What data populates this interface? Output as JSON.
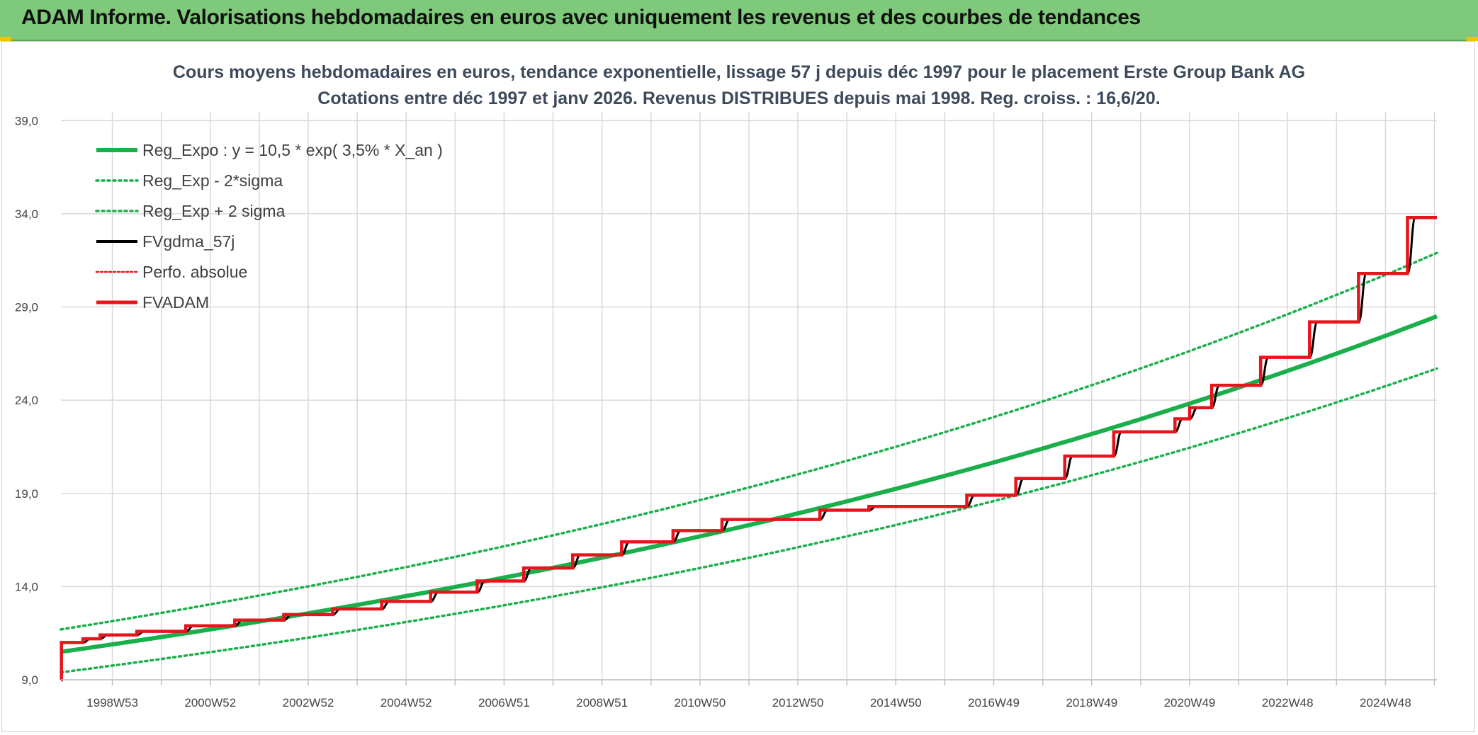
{
  "banner": {
    "title": "ADAM Informe. Valorisations hebdomadaires en euros avec uniquement les revenus et des courbes de tendances"
  },
  "colors": {
    "banner_bg": "#7fc97a",
    "trend_green": "#1aaf4b",
    "red": "#e8141c",
    "black": "#000000",
    "grid": "#d9d9d9"
  },
  "chart_data": {
    "type": "line",
    "title": "Cours moyens hebdomadaires en euros, tendance exponentielle, lissage 57 j depuis déc 1997 pour le placement Erste Group Bank AG",
    "subtitle": "Cotations entre déc 1997 et janv 2026. Revenus DISTRIBUES depuis mai 1998. Reg. croiss. : 16,6/20.",
    "xlabel": "",
    "ylabel": "",
    "x_range": [
      1997.95,
      2026.05
    ],
    "ylim": [
      9,
      40
    ],
    "y_ticks": [
      "9,0",
      "14,0",
      "19,0",
      "24,0",
      "29,0",
      "34,0",
      "39,0"
    ],
    "y_tick_values": [
      9,
      14,
      19,
      24,
      29,
      34,
      39
    ],
    "x_tick_labels": [
      "1998W53",
      "2000W52",
      "2002W52",
      "2004W52",
      "2006W51",
      "2008W51",
      "2010W50",
      "2012W50",
      "2014W50",
      "2016W49",
      "2018W49",
      "2020W49",
      "2022W48",
      "2024W48"
    ],
    "x_tick_values": [
      1999.0,
      2001.0,
      2003.0,
      2005.0,
      2007.0,
      2009.0,
      2011.0,
      2013.0,
      2015.0,
      2017.0,
      2019.0,
      2021.0,
      2023.0,
      2025.0
    ],
    "grid": true,
    "legend_position": "top-left",
    "legend": [
      "Reg_Expo : y = 10,5 * exp( 3,5% *  X_an )",
      "Reg_Exp - 2*sigma",
      "Reg_Exp + 2 sigma",
      "FVgdma_57j",
      "Perfo. absolue",
      "FVADAM"
    ],
    "series": [
      {
        "name": "Reg_Expo : y = 10,5 * exp( 3,5% *  X_an )",
        "style": "solid",
        "color": "#1aaf4b",
        "x": [
          1997.95,
          2026.05
        ],
        "y_start": 10.5,
        "y_end": 28.5
      },
      {
        "name": "Reg_Exp - 2*sigma",
        "style": "dotted",
        "color": "#1aaf4b",
        "x": [
          1997.95,
          2026.05
        ],
        "y_start": 9.4,
        "y_end": 25.7
      },
      {
        "name": "Reg_Exp + 2 sigma",
        "style": "dotted",
        "color": "#1aaf4b",
        "x": [
          1997.95,
          2026.05
        ],
        "y_start": 11.7,
        "y_end": 31.9
      },
      {
        "name": "FVgdma_57j",
        "style": "solid",
        "color": "#000000",
        "note": "smoothed version of FVADAM"
      },
      {
        "name": "Perfo. absolue",
        "style": "dotted",
        "color": "#e8141c",
        "values": []
      },
      {
        "name": "FVADAM",
        "style": "step",
        "color": "#e8141c",
        "x": [
          1997.95,
          1997.96,
          1998.4,
          1998.75,
          1999.5,
          2000.5,
          2001.5,
          2002.5,
          2003.5,
          2004.5,
          2005.5,
          2006.45,
          2007.4,
          2008.4,
          2009.4,
          2010.45,
          2011.45,
          2012.45,
          2013.45,
          2014.45,
          2015.45,
          2016.45,
          2017.45,
          2018.45,
          2019.45,
          2020.45,
          2020.7,
          2021.0,
          2021.45,
          2022.45,
          2023.45,
          2024.45,
          2025.45,
          2026.05
        ],
        "y": [
          9.0,
          11.0,
          11.2,
          11.4,
          11.6,
          11.9,
          12.2,
          12.5,
          12.8,
          13.2,
          13.7,
          14.3,
          15.0,
          15.7,
          16.4,
          17.0,
          17.6,
          17.6,
          18.1,
          18.3,
          18.3,
          18.9,
          19.8,
          21.0,
          22.3,
          22.3,
          23.0,
          23.6,
          24.8,
          26.3,
          28.2,
          30.8,
          33.8,
          33.8
        ]
      }
    ]
  }
}
